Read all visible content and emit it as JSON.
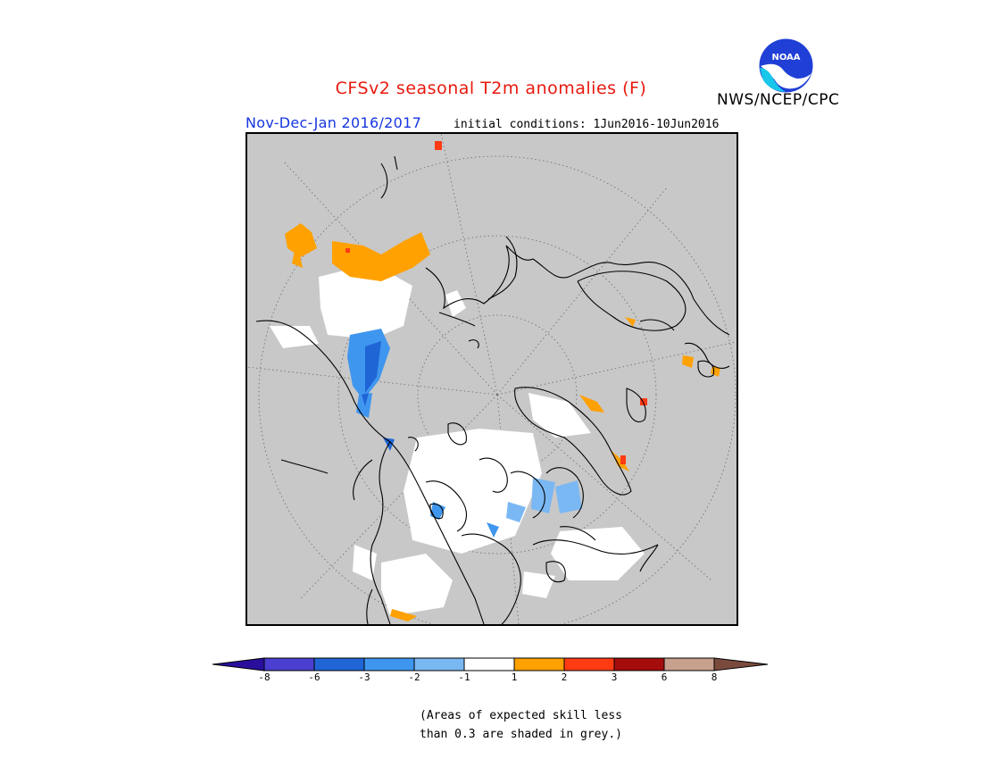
{
  "header": {
    "title": "CFSv2 seasonal T2m anomalies (F)",
    "agency": "NWS/NCEP/CPC",
    "season": "Nov-Dec-Jan 2016/2017",
    "initial_conditions": "initial conditions: 1Jun2016-10Jun2016",
    "logo_text": "NOAA"
  },
  "map": {
    "projection": "north polar stereographic",
    "background_color": "#c8c8c8"
  },
  "colorbar": {
    "ticks": [
      "-8",
      "-6",
      "-3",
      "-2",
      "-1",
      "1",
      "2",
      "3",
      "6",
      "8"
    ],
    "colors": [
      "#2a0f9c",
      "#4a3fd0",
      "#1f65d6",
      "#3f96ee",
      "#7ab8f4",
      "#ffffff",
      "#ffa100",
      "#ff3b14",
      "#a50d0d",
      "#c8a08e",
      "#7a4a3c"
    ]
  },
  "legend_note": {
    "line1": "(Areas of expected skill less",
    "line2": "than 0.3 are shaded in grey.)"
  }
}
